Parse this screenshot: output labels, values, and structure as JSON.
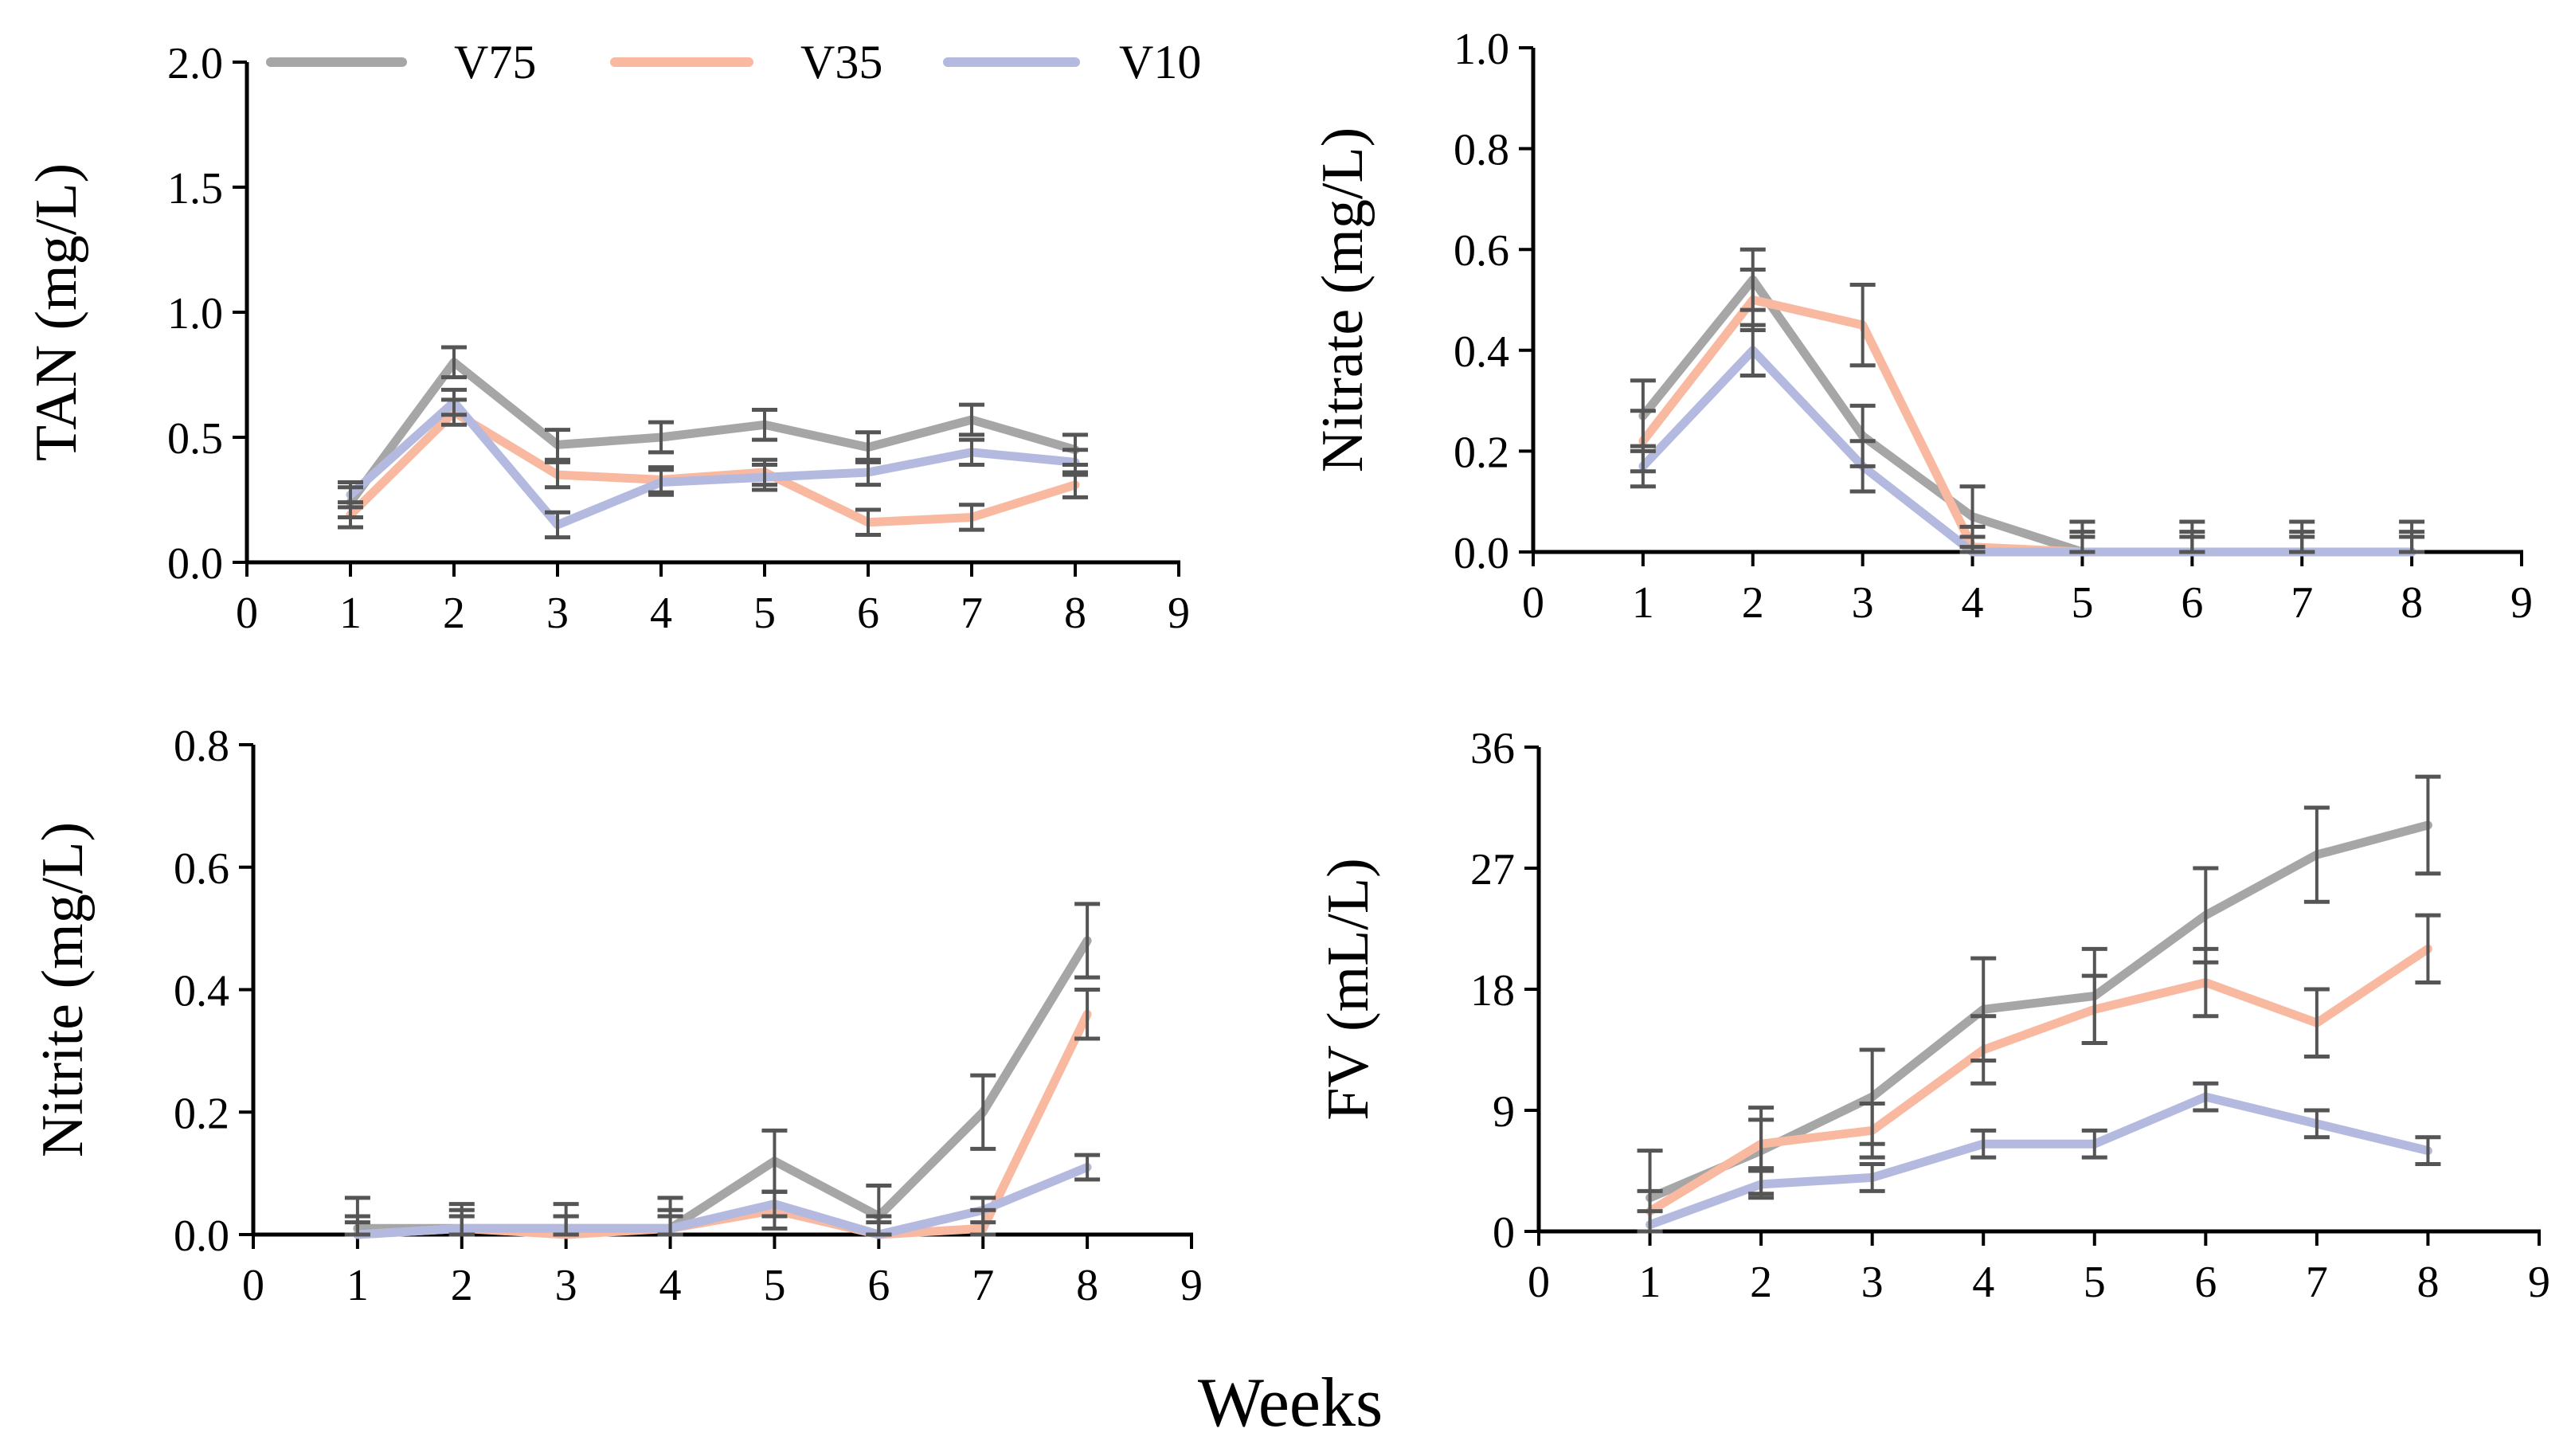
{
  "figure": {
    "xlabel_common": "Weeks",
    "colors": {
      "V75": "#A6A6A6",
      "V35": "#F8B9A0",
      "V10": "#B4BADF",
      "error": "#555555",
      "axis": "#000000"
    }
  },
  "legend": {
    "placement": "top of top-left panel",
    "entries": [
      "V75",
      "V35",
      "V10"
    ]
  },
  "chart_data": [
    {
      "type": "line",
      "title": "",
      "xlabel": "",
      "ylabel": "TAN (mg/L)",
      "xlim": [
        0,
        9
      ],
      "ylim": [
        0,
        2.0
      ],
      "xticks": [
        "0",
        "1",
        "2",
        "3",
        "4",
        "5",
        "6",
        "7",
        "8",
        "9"
      ],
      "yticks": [
        "0.0",
        "0.5",
        "1.0",
        "1.5",
        "2.0"
      ],
      "grid": false,
      "x": [
        1,
        2,
        3,
        4,
        5,
        6,
        7,
        8
      ],
      "series": [
        {
          "name": "V75",
          "values": [
            0.24,
            0.8,
            0.47,
            0.5,
            0.55,
            0.46,
            0.57,
            0.45
          ],
          "errors": [
            0.06,
            0.06,
            0.06,
            0.06,
            0.06,
            0.06,
            0.06,
            0.06
          ]
        },
        {
          "name": "V35",
          "values": [
            0.19,
            0.6,
            0.35,
            0.33,
            0.36,
            0.16,
            0.18,
            0.31
          ],
          "errors": [
            0.05,
            0.05,
            0.05,
            0.05,
            0.05,
            0.05,
            0.05,
            0.05
          ]
        },
        {
          "name": "V10",
          "values": [
            0.27,
            0.64,
            0.15,
            0.32,
            0.34,
            0.36,
            0.44,
            0.4
          ],
          "errors": [
            0.05,
            0.05,
            0.05,
            0.05,
            0.05,
            0.05,
            0.05,
            0.05
          ]
        }
      ]
    },
    {
      "type": "line",
      "title": "",
      "xlabel": "",
      "ylabel": "Nitrate (mg/L)",
      "xlim": [
        0,
        9
      ],
      "ylim": [
        0,
        1.0
      ],
      "xticks": [
        "0",
        "1",
        "2",
        "3",
        "4",
        "5",
        "6",
        "7",
        "8",
        "9"
      ],
      "yticks": [
        "0.0",
        "0.2",
        "0.4",
        "0.6",
        "0.8",
        "1.0"
      ],
      "grid": false,
      "x": [
        1,
        2,
        3,
        4,
        5,
        6,
        7,
        8
      ],
      "series": [
        {
          "name": "V75",
          "values": [
            0.27,
            0.54,
            0.23,
            0.07,
            0.0,
            0.0,
            0.0,
            0.0
          ],
          "errors": [
            0.07,
            0.06,
            0.06,
            0.06,
            0.06,
            0.06,
            0.06,
            0.06
          ]
        },
        {
          "name": "V35",
          "values": [
            0.22,
            0.5,
            0.45,
            0.01,
            0.0,
            0.0,
            0.0,
            0.0
          ],
          "errors": [
            0.06,
            0.06,
            0.08,
            0.04,
            0.04,
            0.04,
            0.04,
            0.04
          ]
        },
        {
          "name": "V10",
          "values": [
            0.17,
            0.4,
            0.17,
            0.0,
            0.0,
            0.0,
            0.0,
            0.0
          ],
          "errors": [
            0.04,
            0.05,
            0.05,
            0.03,
            0.03,
            0.03,
            0.03,
            0.03
          ]
        }
      ]
    },
    {
      "type": "line",
      "title": "",
      "xlabel": "",
      "ylabel": "Nitrite (mg/L)",
      "xlim": [
        0,
        9
      ],
      "ylim": [
        0,
        0.8
      ],
      "xticks": [
        "0",
        "1",
        "2",
        "3",
        "4",
        "5",
        "6",
        "7",
        "8",
        "9"
      ],
      "yticks": [
        "0.0",
        "0.2",
        "0.4",
        "0.6",
        "0.8"
      ],
      "grid": false,
      "x": [
        1,
        2,
        3,
        4,
        5,
        6,
        7,
        8
      ],
      "series": [
        {
          "name": "V75",
          "values": [
            0.01,
            0.01,
            0.01,
            0.01,
            0.12,
            0.03,
            0.2,
            0.48
          ],
          "errors": [
            0.05,
            0.04,
            0.04,
            0.05,
            0.05,
            0.05,
            0.06,
            0.06
          ]
        },
        {
          "name": "V35",
          "values": [
            0.0,
            0.01,
            0.0,
            0.01,
            0.04,
            0.0,
            0.01,
            0.36
          ],
          "errors": [
            0.03,
            0.03,
            0.03,
            0.03,
            0.03,
            0.03,
            0.03,
            0.04
          ]
        },
        {
          "name": "V10",
          "values": [
            0.0,
            0.01,
            0.01,
            0.01,
            0.05,
            0.0,
            0.04,
            0.11
          ],
          "errors": [
            0.02,
            0.02,
            0.02,
            0.02,
            0.02,
            0.02,
            0.02,
            0.02
          ]
        }
      ]
    },
    {
      "type": "line",
      "title": "",
      "xlabel": "",
      "ylabel": "FV (mL/L)",
      "xlim": [
        0,
        9
      ],
      "ylim": [
        0,
        36
      ],
      "xticks": [
        "0",
        "1",
        "2",
        "3",
        "4",
        "5",
        "6",
        "7",
        "8",
        "9"
      ],
      "yticks": [
        "0",
        "9",
        "18",
        "27",
        "36"
      ],
      "grid": false,
      "x": [
        1,
        2,
        3,
        4,
        5,
        6,
        7,
        8
      ],
      "series": [
        {
          "name": "V75",
          "values": [
            2.5,
            6.0,
            10.0,
            16.5,
            17.5,
            23.5,
            28.0,
            30.2
          ],
          "errors": [
            3.5,
            3.2,
            3.5,
            3.8,
            3.5,
            3.5,
            3.5,
            3.6
          ]
        },
        {
          "name": "V35",
          "values": [
            1.5,
            6.5,
            7.5,
            13.5,
            16.5,
            18.5,
            15.5,
            21.0
          ],
          "errors": [
            1.5,
            1.8,
            2.0,
            2.5,
            2.5,
            2.5,
            2.5,
            2.5
          ]
        },
        {
          "name": "V10",
          "values": [
            0.5,
            3.5,
            4.0,
            6.5,
            6.5,
            10.0,
            8.0,
            6.0
          ],
          "errors": [
            1.0,
            1.0,
            1.0,
            1.0,
            1.0,
            1.0,
            1.0,
            1.0
          ]
        }
      ]
    }
  ]
}
